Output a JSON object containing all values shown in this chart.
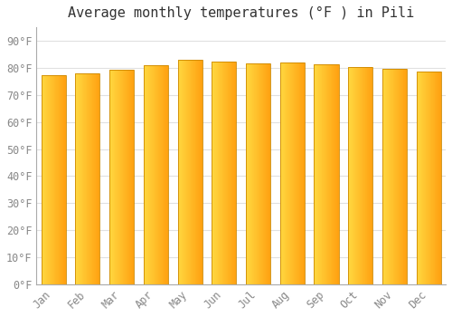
{
  "title": "Average monthly temperatures (°F ) in Pili",
  "months": [
    "Jan",
    "Feb",
    "Mar",
    "Apr",
    "May",
    "Jun",
    "Jul",
    "Aug",
    "Sep",
    "Oct",
    "Nov",
    "Dec"
  ],
  "values": [
    77.2,
    78.0,
    79.3,
    81.0,
    82.9,
    82.4,
    81.7,
    81.9,
    81.3,
    80.4,
    79.7,
    78.6
  ],
  "bar_color_left": "#FFD840",
  "bar_color_right": "#FFA010",
  "bar_outline_color": "#CC8800",
  "yticks": [
    0,
    10,
    20,
    30,
    40,
    50,
    60,
    70,
    80,
    90
  ],
  "ytick_labels": [
    "0°F",
    "10°F",
    "20°F",
    "30°F",
    "40°F",
    "50°F",
    "60°F",
    "70°F",
    "80°F",
    "90°F"
  ],
  "ylim": [
    0,
    95
  ],
  "background_color": "#FFFFFF",
  "plot_bg_color": "#FFFFFF",
  "grid_color": "#E0E0E0",
  "title_fontsize": 11,
  "tick_fontsize": 8.5,
  "tick_color": "#888888"
}
